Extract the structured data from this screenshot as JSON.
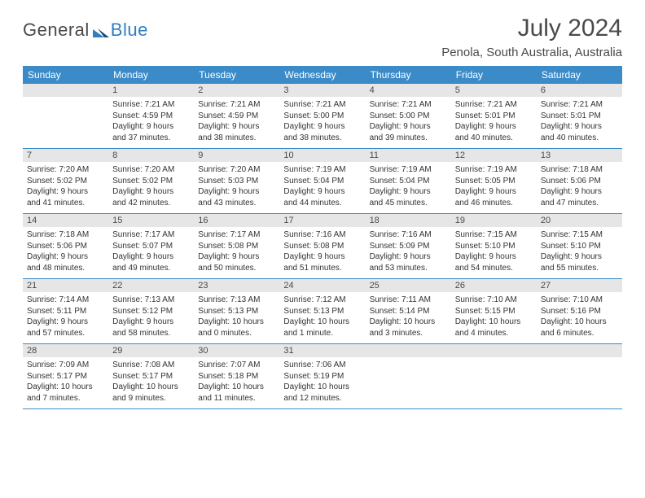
{
  "brand": {
    "part1": "General",
    "part2": "Blue"
  },
  "title": "July 2024",
  "location": "Penola, South Australia, Australia",
  "colors": {
    "header_bg": "#3b8bc9",
    "header_text": "#ffffff",
    "daynum_bg": "#e6e6e6",
    "text": "#333333",
    "accent": "#2f7fc2",
    "rule": "#3b8bc9"
  },
  "day_headers": [
    "Sunday",
    "Monday",
    "Tuesday",
    "Wednesday",
    "Thursday",
    "Friday",
    "Saturday"
  ],
  "weeks": [
    [
      null,
      {
        "n": "1",
        "sunrise": "Sunrise: 7:21 AM",
        "sunset": "Sunset: 4:59 PM",
        "dl1": "Daylight: 9 hours",
        "dl2": "and 37 minutes."
      },
      {
        "n": "2",
        "sunrise": "Sunrise: 7:21 AM",
        "sunset": "Sunset: 4:59 PM",
        "dl1": "Daylight: 9 hours",
        "dl2": "and 38 minutes."
      },
      {
        "n": "3",
        "sunrise": "Sunrise: 7:21 AM",
        "sunset": "Sunset: 5:00 PM",
        "dl1": "Daylight: 9 hours",
        "dl2": "and 38 minutes."
      },
      {
        "n": "4",
        "sunrise": "Sunrise: 7:21 AM",
        "sunset": "Sunset: 5:00 PM",
        "dl1": "Daylight: 9 hours",
        "dl2": "and 39 minutes."
      },
      {
        "n": "5",
        "sunrise": "Sunrise: 7:21 AM",
        "sunset": "Sunset: 5:01 PM",
        "dl1": "Daylight: 9 hours",
        "dl2": "and 40 minutes."
      },
      {
        "n": "6",
        "sunrise": "Sunrise: 7:21 AM",
        "sunset": "Sunset: 5:01 PM",
        "dl1": "Daylight: 9 hours",
        "dl2": "and 40 minutes."
      }
    ],
    [
      {
        "n": "7",
        "sunrise": "Sunrise: 7:20 AM",
        "sunset": "Sunset: 5:02 PM",
        "dl1": "Daylight: 9 hours",
        "dl2": "and 41 minutes."
      },
      {
        "n": "8",
        "sunrise": "Sunrise: 7:20 AM",
        "sunset": "Sunset: 5:02 PM",
        "dl1": "Daylight: 9 hours",
        "dl2": "and 42 minutes."
      },
      {
        "n": "9",
        "sunrise": "Sunrise: 7:20 AM",
        "sunset": "Sunset: 5:03 PM",
        "dl1": "Daylight: 9 hours",
        "dl2": "and 43 minutes."
      },
      {
        "n": "10",
        "sunrise": "Sunrise: 7:19 AM",
        "sunset": "Sunset: 5:04 PM",
        "dl1": "Daylight: 9 hours",
        "dl2": "and 44 minutes."
      },
      {
        "n": "11",
        "sunrise": "Sunrise: 7:19 AM",
        "sunset": "Sunset: 5:04 PM",
        "dl1": "Daylight: 9 hours",
        "dl2": "and 45 minutes."
      },
      {
        "n": "12",
        "sunrise": "Sunrise: 7:19 AM",
        "sunset": "Sunset: 5:05 PM",
        "dl1": "Daylight: 9 hours",
        "dl2": "and 46 minutes."
      },
      {
        "n": "13",
        "sunrise": "Sunrise: 7:18 AM",
        "sunset": "Sunset: 5:06 PM",
        "dl1": "Daylight: 9 hours",
        "dl2": "and 47 minutes."
      }
    ],
    [
      {
        "n": "14",
        "sunrise": "Sunrise: 7:18 AM",
        "sunset": "Sunset: 5:06 PM",
        "dl1": "Daylight: 9 hours",
        "dl2": "and 48 minutes."
      },
      {
        "n": "15",
        "sunrise": "Sunrise: 7:17 AM",
        "sunset": "Sunset: 5:07 PM",
        "dl1": "Daylight: 9 hours",
        "dl2": "and 49 minutes."
      },
      {
        "n": "16",
        "sunrise": "Sunrise: 7:17 AM",
        "sunset": "Sunset: 5:08 PM",
        "dl1": "Daylight: 9 hours",
        "dl2": "and 50 minutes."
      },
      {
        "n": "17",
        "sunrise": "Sunrise: 7:16 AM",
        "sunset": "Sunset: 5:08 PM",
        "dl1": "Daylight: 9 hours",
        "dl2": "and 51 minutes."
      },
      {
        "n": "18",
        "sunrise": "Sunrise: 7:16 AM",
        "sunset": "Sunset: 5:09 PM",
        "dl1": "Daylight: 9 hours",
        "dl2": "and 53 minutes."
      },
      {
        "n": "19",
        "sunrise": "Sunrise: 7:15 AM",
        "sunset": "Sunset: 5:10 PM",
        "dl1": "Daylight: 9 hours",
        "dl2": "and 54 minutes."
      },
      {
        "n": "20",
        "sunrise": "Sunrise: 7:15 AM",
        "sunset": "Sunset: 5:10 PM",
        "dl1": "Daylight: 9 hours",
        "dl2": "and 55 minutes."
      }
    ],
    [
      {
        "n": "21",
        "sunrise": "Sunrise: 7:14 AM",
        "sunset": "Sunset: 5:11 PM",
        "dl1": "Daylight: 9 hours",
        "dl2": "and 57 minutes."
      },
      {
        "n": "22",
        "sunrise": "Sunrise: 7:13 AM",
        "sunset": "Sunset: 5:12 PM",
        "dl1": "Daylight: 9 hours",
        "dl2": "and 58 minutes."
      },
      {
        "n": "23",
        "sunrise": "Sunrise: 7:13 AM",
        "sunset": "Sunset: 5:13 PM",
        "dl1": "Daylight: 10 hours",
        "dl2": "and 0 minutes."
      },
      {
        "n": "24",
        "sunrise": "Sunrise: 7:12 AM",
        "sunset": "Sunset: 5:13 PM",
        "dl1": "Daylight: 10 hours",
        "dl2": "and 1 minute."
      },
      {
        "n": "25",
        "sunrise": "Sunrise: 7:11 AM",
        "sunset": "Sunset: 5:14 PM",
        "dl1": "Daylight: 10 hours",
        "dl2": "and 3 minutes."
      },
      {
        "n": "26",
        "sunrise": "Sunrise: 7:10 AM",
        "sunset": "Sunset: 5:15 PM",
        "dl1": "Daylight: 10 hours",
        "dl2": "and 4 minutes."
      },
      {
        "n": "27",
        "sunrise": "Sunrise: 7:10 AM",
        "sunset": "Sunset: 5:16 PM",
        "dl1": "Daylight: 10 hours",
        "dl2": "and 6 minutes."
      }
    ],
    [
      {
        "n": "28",
        "sunrise": "Sunrise: 7:09 AM",
        "sunset": "Sunset: 5:17 PM",
        "dl1": "Daylight: 10 hours",
        "dl2": "and 7 minutes."
      },
      {
        "n": "29",
        "sunrise": "Sunrise: 7:08 AM",
        "sunset": "Sunset: 5:17 PM",
        "dl1": "Daylight: 10 hours",
        "dl2": "and 9 minutes."
      },
      {
        "n": "30",
        "sunrise": "Sunrise: 7:07 AM",
        "sunset": "Sunset: 5:18 PM",
        "dl1": "Daylight: 10 hours",
        "dl2": "and 11 minutes."
      },
      {
        "n": "31",
        "sunrise": "Sunrise: 7:06 AM",
        "sunset": "Sunset: 5:19 PM",
        "dl1": "Daylight: 10 hours",
        "dl2": "and 12 minutes."
      },
      null,
      null,
      null
    ]
  ]
}
